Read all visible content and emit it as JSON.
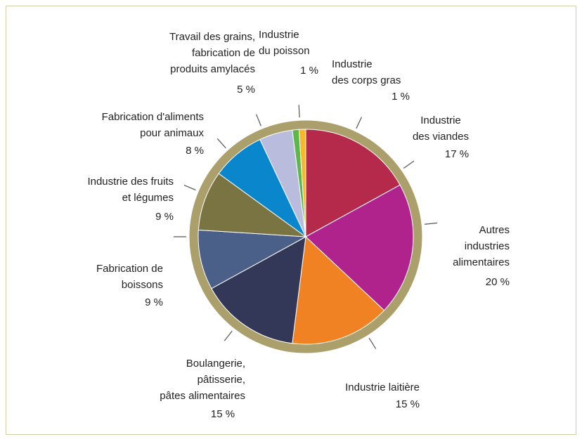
{
  "chart_data": {
    "type": "pie",
    "categories": [
      [
        "Industrie",
        "des viandes"
      ],
      [
        "Autres",
        "industries",
        "alimentaires"
      ],
      [
        "Industrie laitière"
      ],
      [
        "Boulangerie,",
        "pâtisserie,",
        "pâtes alimentaires"
      ],
      [
        "Fabrication de",
        "boissons"
      ],
      [
        "Industrie des fruits",
        "et légumes"
      ],
      [
        "Fabrication d'aliments",
        "pour animaux"
      ],
      [
        "Travail des grains,",
        "fabrication de",
        "produits amylacés"
      ],
      [
        "Industrie",
        "du poisson"
      ],
      [
        "Industrie",
        "des corps gras"
      ]
    ],
    "values": [
      17,
      20,
      15,
      15,
      9,
      9,
      8,
      5,
      1,
      1
    ],
    "value_labels": [
      "17 %",
      "20 %",
      "15 %",
      "15 %",
      "9 %",
      "9 %",
      "8 %",
      "5 %",
      "1 %",
      "1 %"
    ],
    "colors": [
      "#b5294a",
      "#b0228c",
      "#f08223",
      "#333858",
      "#4b6089",
      "#7a7442",
      "#0a86cc",
      "#b9bcdd",
      "#5cb84a",
      "#f6b825"
    ]
  }
}
